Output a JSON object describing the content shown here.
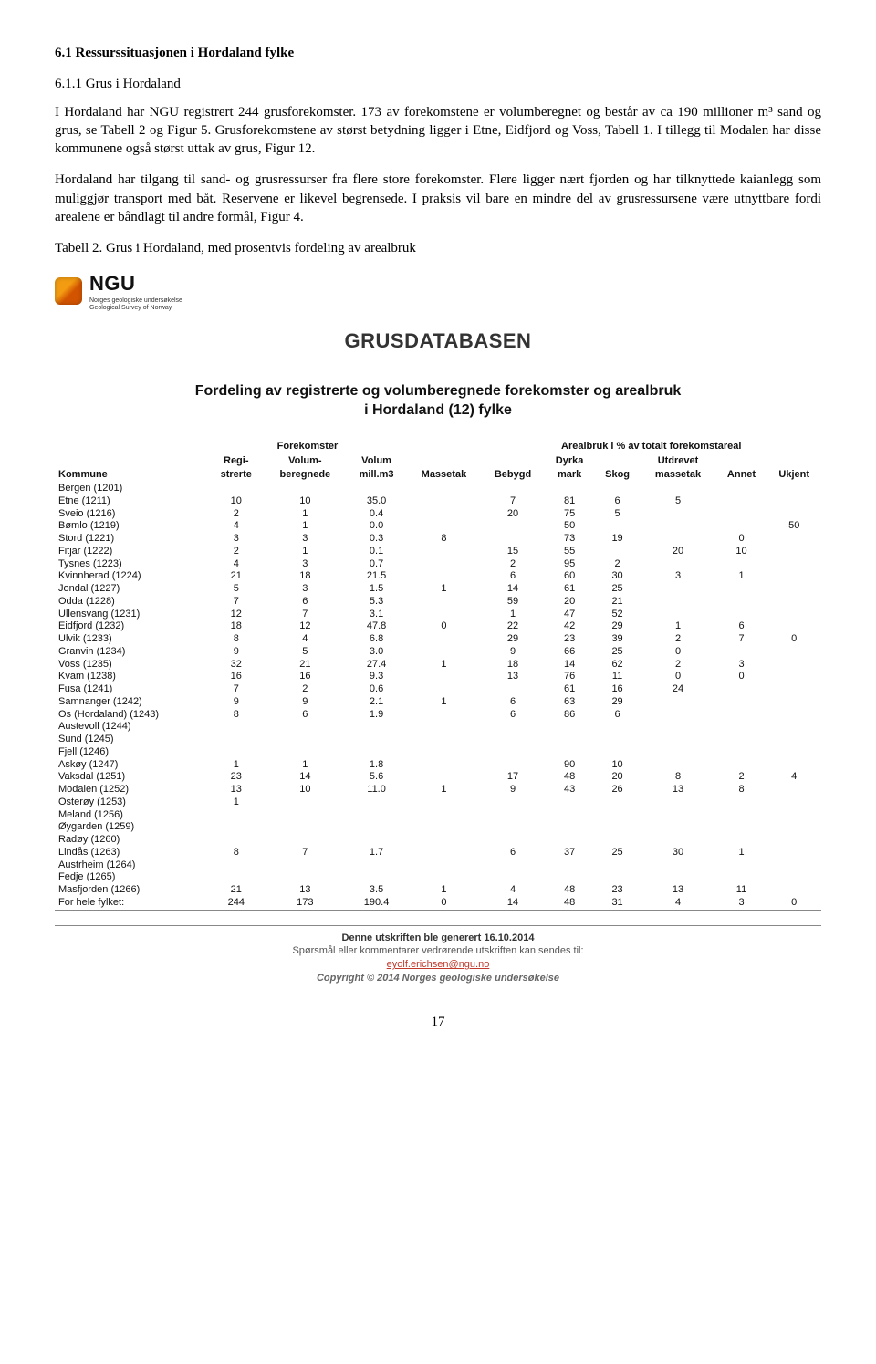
{
  "heading_6_1": "6.1  Ressurssituasjonen i Hordaland fylke",
  "heading_6_1_1": "6.1.1  Grus i Hordaland",
  "para1": "I Hordaland har NGU registrert 244 grusforekomster. 173 av forekomstene er volumberegnet og består av ca 190 millioner m³ sand og grus, se Tabell 2 og Figur 5. Grusforekomstene av størst betydning ligger i Etne, Eidfjord og Voss, Tabell 1. I tillegg til Modalen har disse kommunene også størst uttak av grus,        Figur 12.",
  "para2": "Hordaland har tilgang til sand- og grusressurser fra flere store forekomster. Flere ligger nært fjorden og har tilknyttede kaianlegg som muliggjør transport med båt. Reservene er likevel begrensede. I praksis vil bare en mindre del av grusressursene være utnyttbare fordi arealene er båndlagt til andre formål, Figur 4.",
  "table2_caption": "Tabell 2. Grus i Hordaland, med prosentvis fordeling av arealbruk",
  "ngu_logo": {
    "main": "NGU",
    "sub1": "Norges geologiske undersøkelse",
    "sub2": "Geological Survey of Norway"
  },
  "panel_title": "GRUSDATABASEN",
  "db_title_l1": "Fordeling av registrerte og volumberegnede forekomster og arealbruk",
  "db_title_l2": "i Hordaland (12) fylke",
  "header_group_forekomster": "Forekomster",
  "header_group_arealbruk": "Arealbruk i % av totalt forekomstareal",
  "columns": {
    "kommune": "Kommune",
    "regi": "Regi-\nstrerte",
    "volum_ber": "Volum-\nberegnede",
    "volum": "Volum\nmill.m3",
    "massetak": "Massetak",
    "bebygd": "Bebygd",
    "dyrka": "Dyrka\nmark",
    "skog": "Skog",
    "utdrevet": "Utdrevet\nmassetak",
    "annet": "Annet",
    "ukjent": "Ukjent"
  },
  "rows": [
    {
      "k": "Bergen (1201)"
    },
    {
      "k": "Etne (1211)",
      "r": 10,
      "vb": 10,
      "v": "35.0",
      "b": 7,
      "d": 81,
      "s": 6,
      "u": 5
    },
    {
      "k": "Sveio (1216)",
      "r": 2,
      "vb": 1,
      "v": "0.4",
      "b": 20,
      "d": 75,
      "s": 5
    },
    {
      "k": "Bømlo (1219)",
      "r": 4,
      "vb": 1,
      "v": "0.0",
      "d": 50,
      "uk": 50
    },
    {
      "k": "Stord (1221)",
      "r": 3,
      "vb": 3,
      "v": "0.3",
      "m": 8,
      "d": 73,
      "s": 19,
      "a": 0
    },
    {
      "k": "Fitjar (1222)",
      "r": 2,
      "vb": 1,
      "v": "0.1",
      "b": 15,
      "d": 55,
      "u": 20,
      "a": 10
    },
    {
      "k": "Tysnes (1223)",
      "r": 4,
      "vb": 3,
      "v": "0.7",
      "b": 2,
      "d": 95,
      "s": 2
    },
    {
      "k": "Kvinnherad (1224)",
      "r": 21,
      "vb": 18,
      "v": "21.5",
      "b": 6,
      "d": 60,
      "s": 30,
      "u": 3,
      "a": 1
    },
    {
      "k": "Jondal (1227)",
      "r": 5,
      "vb": 3,
      "v": "1.5",
      "m": 1,
      "b": 14,
      "d": 61,
      "s": 25
    },
    {
      "k": "Odda (1228)",
      "r": 7,
      "vb": 6,
      "v": "5.3",
      "b": 59,
      "d": 20,
      "s": 21
    },
    {
      "k": "Ullensvang (1231)",
      "r": 12,
      "vb": 7,
      "v": "3.1",
      "b": 1,
      "d": 47,
      "s": 52
    },
    {
      "k": "Eidfjord (1232)",
      "r": 18,
      "vb": 12,
      "v": "47.8",
      "m": 0,
      "b": 22,
      "d": 42,
      "s": 29,
      "u": 1,
      "a": 6
    },
    {
      "k": "Ulvik (1233)",
      "r": 8,
      "vb": 4,
      "v": "6.8",
      "b": 29,
      "d": 23,
      "s": 39,
      "u": 2,
      "a": 7,
      "uk": 0
    },
    {
      "k": "Granvin (1234)",
      "r": 9,
      "vb": 5,
      "v": "3.0",
      "b": 9,
      "d": 66,
      "s": 25,
      "u": 0
    },
    {
      "k": "Voss (1235)",
      "r": 32,
      "vb": 21,
      "v": "27.4",
      "m": 1,
      "b": 18,
      "d": 14,
      "s": 62,
      "u": 2,
      "a": 3
    },
    {
      "k": "Kvam (1238)",
      "r": 16,
      "vb": 16,
      "v": "9.3",
      "b": 13,
      "d": 76,
      "s": 11,
      "u": 0,
      "a": 0
    },
    {
      "k": "Fusa (1241)",
      "r": 7,
      "vb": 2,
      "v": "0.6",
      "d": 61,
      "s": 16,
      "u": 24
    },
    {
      "k": "Samnanger (1242)",
      "r": 9,
      "vb": 9,
      "v": "2.1",
      "m": 1,
      "b": 6,
      "d": 63,
      "s": 29
    },
    {
      "k": "Os (Hordaland) (1243)",
      "r": 8,
      "vb": 6,
      "v": "1.9",
      "b": 6,
      "d": 86,
      "s": 6
    },
    {
      "k": "Austevoll (1244)"
    },
    {
      "k": "Sund (1245)"
    },
    {
      "k": "Fjell (1246)"
    },
    {
      "k": "Askøy (1247)",
      "r": 1,
      "vb": 1,
      "v": "1.8",
      "d": 90,
      "s": 10
    },
    {
      "k": "Vaksdal (1251)",
      "r": 23,
      "vb": 14,
      "v": "5.6",
      "b": 17,
      "d": 48,
      "s": 20,
      "u": 8,
      "a": 2,
      "uk": 4
    },
    {
      "k": "Modalen (1252)",
      "r": 13,
      "vb": 10,
      "v": "11.0",
      "m": 1,
      "b": 9,
      "d": 43,
      "s": 26,
      "u": 13,
      "a": 8
    },
    {
      "k": "Osterøy (1253)",
      "r": 1
    },
    {
      "k": "Meland (1256)"
    },
    {
      "k": "Øygarden (1259)"
    },
    {
      "k": "Radøy (1260)"
    },
    {
      "k": "Lindås (1263)",
      "r": 8,
      "vb": 7,
      "v": "1.7",
      "b": 6,
      "d": 37,
      "s": 25,
      "u": 30,
      "a": 1
    },
    {
      "k": "Austrheim (1264)"
    },
    {
      "k": "Fedje (1265)"
    },
    {
      "k": "Masfjorden (1266)",
      "r": 21,
      "vb": 13,
      "v": "3.5",
      "m": 1,
      "b": 4,
      "d": 48,
      "s": 23,
      "u": 13,
      "a": 11
    }
  ],
  "total_label": "For hele fylket:",
  "total": {
    "r": 244,
    "vb": 173,
    "v": "190.4",
    "m": 0,
    "b": 14,
    "d": 48,
    "s": 31,
    "u": 4,
    "a": 3,
    "uk": 0
  },
  "footer": {
    "generated": "Denne utskriften ble generert 16.10.2014",
    "questions": "Spørsmål eller kommentarer vedrørende utskriften kan sendes til:",
    "email": "eyolf.erichsen@ngu.no",
    "copyright": "Copyright © 2014 Norges geologiske undersøkelse"
  },
  "page_number": "17"
}
